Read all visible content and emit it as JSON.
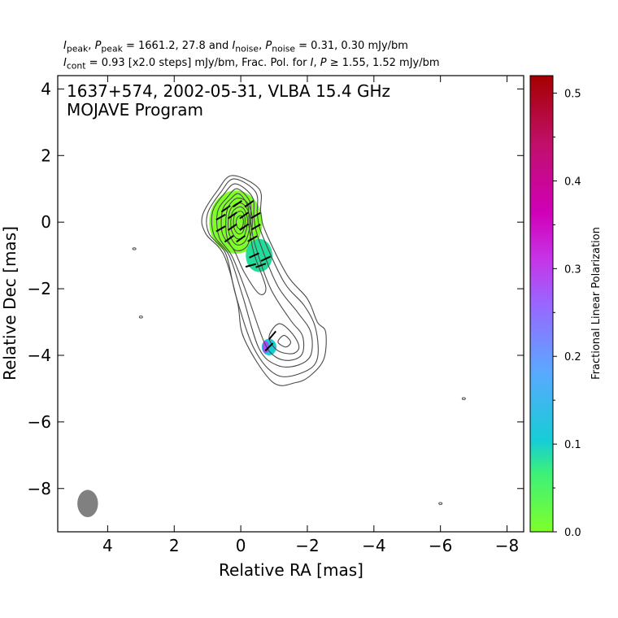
{
  "header": {
    "line1": "I_peak, P_peak = 1661.2, 27.8 and I_noise, P_noise = 0.31, 0.30 mJy/bm",
    "line2": "I_cont = 0.93 [x2.0 steps] mJy/bm, Frac. Pol. for I, P ≥ 1.55, 1.52 mJy/bm"
  },
  "chart_data": {
    "type": "contour",
    "title_line1": "1637+574, 2002-05-31, VLBA 15.4 GHz",
    "title_line2": "MOJAVE Program",
    "xlabel": "Relative RA [mas]",
    "ylabel": "Relative Dec [mas]",
    "xlim": [
      5.5,
      -8.5
    ],
    "ylim": [
      -9.3,
      4.4
    ],
    "x_ticks": [
      4,
      2,
      0,
      -2,
      -4,
      -6,
      -8
    ],
    "x_tick_labels": [
      "4",
      "2",
      "0",
      "−2",
      "−4",
      "−6",
      "−8"
    ],
    "y_ticks": [
      4,
      2,
      0,
      -2,
      -4,
      -6,
      -8
    ],
    "y_tick_labels": [
      "4",
      "2",
      "0",
      "−2",
      "−4",
      "−6",
      "−8"
    ],
    "colorbar": {
      "label": "Fractional Linear Polarization",
      "range": [
        0.0,
        0.52
      ],
      "ticks": [
        0.0,
        0.1,
        0.2,
        0.3,
        0.4,
        0.5
      ],
      "tick_labels": [
        "0.0",
        "0.1",
        "0.2",
        "0.3",
        "0.4",
        "0.5"
      ],
      "colormap": [
        "#7fff2a",
        "#22dd9a",
        "#16cdd6",
        "#5aa9ff",
        "#a64dff",
        "#d000d0",
        "#c0106a",
        "#a50000"
      ]
    },
    "contours": [
      {
        "level": 1,
        "points": [
          [
            0.25,
            1.4
          ],
          [
            -0.55,
            1.0
          ],
          [
            -0.6,
            0.3
          ],
          [
            -0.75,
            -0.3
          ],
          [
            -1.4,
            -1.6
          ],
          [
            -2.0,
            -2.3
          ],
          [
            -2.3,
            -3.0
          ],
          [
            -2.55,
            -3.3
          ],
          [
            -2.5,
            -4.1
          ],
          [
            -2.1,
            -4.6
          ],
          [
            -1.65,
            -4.82
          ],
          [
            -0.95,
            -4.8
          ],
          [
            -0.1,
            -3.5
          ],
          [
            0.1,
            -2.4
          ],
          [
            0.5,
            -1.0
          ],
          [
            1.05,
            -0.35
          ],
          [
            1.15,
            0.2
          ],
          [
            0.7,
            0.95
          ]
        ]
      },
      {
        "level": 2,
        "points": [
          [
            0.2,
            1.3
          ],
          [
            -0.45,
            0.9
          ],
          [
            -0.5,
            0.2
          ],
          [
            -0.65,
            -0.4
          ],
          [
            -1.3,
            -1.8
          ],
          [
            -1.9,
            -2.5
          ],
          [
            -2.25,
            -3.2
          ],
          [
            -2.3,
            -4.1
          ],
          [
            -1.9,
            -4.5
          ],
          [
            -1.1,
            -4.6
          ],
          [
            -0.4,
            -3.8
          ],
          [
            0.15,
            -2.2
          ],
          [
            0.45,
            -0.95
          ],
          [
            0.95,
            -0.35
          ],
          [
            1.0,
            0.25
          ],
          [
            0.6,
            0.9
          ]
        ]
      },
      {
        "level": 3,
        "points": [
          [
            0.15,
            1.15
          ],
          [
            -0.35,
            0.75
          ],
          [
            -0.4,
            0.1
          ],
          [
            -0.55,
            -0.55
          ],
          [
            -1.1,
            -1.9
          ],
          [
            -1.7,
            -2.7
          ],
          [
            -2.1,
            -3.3
          ],
          [
            -2.1,
            -4.0
          ],
          [
            -1.7,
            -4.3
          ],
          [
            -1.1,
            -4.3
          ],
          [
            -0.55,
            -3.8
          ],
          [
            -0.05,
            -2.2
          ],
          [
            0.35,
            -1.0
          ],
          [
            0.8,
            -0.4
          ],
          [
            0.85,
            0.3
          ],
          [
            0.5,
            0.85
          ]
        ]
      },
      {
        "level": 4,
        "points": [
          [
            0.1,
            1.0
          ],
          [
            -0.28,
            0.6
          ],
          [
            -0.3,
            0.0
          ],
          [
            -0.45,
            -0.75
          ],
          [
            -0.9,
            -2.0
          ],
          [
            -1.5,
            -2.95
          ],
          [
            -1.85,
            -3.4
          ],
          [
            -1.85,
            -3.95
          ],
          [
            -1.5,
            -4.15
          ],
          [
            -1.05,
            -4.05
          ],
          [
            -0.7,
            -3.6
          ],
          [
            -0.2,
            -2.2
          ],
          [
            0.25,
            -1.05
          ],
          [
            0.65,
            -0.45
          ],
          [
            0.7,
            0.3
          ],
          [
            0.4,
            0.75
          ]
        ]
      },
      {
        "level": 5,
        "points": [
          [
            0.05,
            0.85
          ],
          [
            -0.22,
            0.45
          ],
          [
            -0.25,
            -0.15
          ],
          [
            -0.4,
            -0.95
          ],
          [
            -0.75,
            -1.95
          ],
          [
            -0.55,
            -2.15
          ],
          [
            -0.1,
            -1.5
          ],
          [
            0.2,
            -0.85
          ],
          [
            0.55,
            -0.35
          ],
          [
            0.55,
            0.35
          ],
          [
            0.3,
            0.7
          ]
        ]
      },
      {
        "level": 6,
        "points": [
          [
            0.45,
            0.0
          ],
          [
            0.38,
            0.45
          ],
          [
            0.1,
            0.72
          ],
          [
            -0.22,
            0.55
          ],
          [
            -0.35,
            0.0
          ],
          [
            -0.2,
            -0.7
          ],
          [
            0.15,
            -0.85
          ],
          [
            0.4,
            -0.5
          ]
        ]
      },
      {
        "level": 7,
        "points": [
          [
            0.38,
            0.0
          ],
          [
            0.3,
            0.4
          ],
          [
            0.05,
            0.58
          ],
          [
            -0.18,
            0.42
          ],
          [
            -0.28,
            0.0
          ],
          [
            -0.15,
            -0.55
          ],
          [
            0.12,
            -0.68
          ],
          [
            0.33,
            -0.4
          ]
        ]
      },
      {
        "level": 8,
        "points": [
          [
            0.3,
            0.0
          ],
          [
            0.24,
            0.32
          ],
          [
            0.02,
            0.46
          ],
          [
            -0.14,
            0.32
          ],
          [
            -0.2,
            0.0
          ],
          [
            -0.1,
            -0.42
          ],
          [
            0.1,
            -0.5
          ],
          [
            0.26,
            -0.3
          ]
        ]
      },
      {
        "level": 9,
        "points": [
          [
            0.22,
            0.0
          ],
          [
            0.17,
            0.24
          ],
          [
            0.0,
            0.33
          ],
          [
            -0.1,
            0.22
          ],
          [
            -0.13,
            0.0
          ],
          [
            -0.06,
            -0.3
          ],
          [
            0.08,
            -0.35
          ],
          [
            0.19,
            -0.2
          ]
        ]
      },
      {
        "level": 10,
        "points": [
          [
            0.14,
            0.0
          ],
          [
            0.1,
            0.14
          ],
          [
            0.0,
            0.2
          ],
          [
            -0.06,
            0.13
          ],
          [
            -0.08,
            0.0
          ],
          [
            -0.03,
            -0.17
          ],
          [
            0.05,
            -0.2
          ],
          [
            0.12,
            -0.11
          ]
        ]
      },
      {
        "level": 11,
        "points": [
          [
            -1.15,
            -3.05
          ],
          [
            -1.55,
            -3.35
          ],
          [
            -1.75,
            -3.75
          ],
          [
            -1.55,
            -3.95
          ],
          [
            -1.1,
            -3.85
          ],
          [
            -0.85,
            -3.45
          ]
        ]
      },
      {
        "level": 12,
        "points": [
          [
            -1.3,
            -3.4
          ],
          [
            -1.5,
            -3.6
          ],
          [
            -1.35,
            -3.75
          ],
          [
            -1.12,
            -3.6
          ]
        ]
      }
    ],
    "noise_specks": [
      {
        "x": 3.2,
        "y": -0.8
      },
      {
        "x": 3.0,
        "y": -2.85
      },
      {
        "x": -6.7,
        "y": -5.3
      },
      {
        "x": -6.0,
        "y": -8.45
      }
    ],
    "polarization_patches": [
      {
        "x": 0.15,
        "y": 0.0,
        "rx": 0.8,
        "ry": 0.95,
        "frac_pol": 0.02
      },
      {
        "x": -0.55,
        "y": -1.0,
        "rx": 0.4,
        "ry": 0.5,
        "frac_pol": 0.1
      },
      {
        "x": -0.85,
        "y": -3.75,
        "rx": 0.22,
        "ry": 0.25,
        "frac_pol": 0.18
      },
      {
        "x": -0.75,
        "y": -3.75,
        "rx": 0.1,
        "ry": 0.18,
        "frac_pol": 0.28
      }
    ],
    "evpa_vectors": [
      {
        "x": -0.25,
        "y": 0.55,
        "angle_deg": 35
      },
      {
        "x": 0.1,
        "y": 0.55,
        "angle_deg": 35
      },
      {
        "x": 0.45,
        "y": 0.4,
        "angle_deg": 35
      },
      {
        "x": -0.45,
        "y": 0.2,
        "angle_deg": 30
      },
      {
        "x": -0.1,
        "y": 0.2,
        "angle_deg": 35
      },
      {
        "x": 0.25,
        "y": 0.2,
        "angle_deg": 35
      },
      {
        "x": 0.6,
        "y": 0.15,
        "angle_deg": 30
      },
      {
        "x": -0.45,
        "y": -0.15,
        "angle_deg": 30
      },
      {
        "x": -0.1,
        "y": -0.15,
        "angle_deg": 35
      },
      {
        "x": 0.25,
        "y": -0.15,
        "angle_deg": 35
      },
      {
        "x": 0.6,
        "y": -0.2,
        "angle_deg": 30
      },
      {
        "x": -0.35,
        "y": -0.5,
        "angle_deg": 30
      },
      {
        "x": 0.0,
        "y": -0.5,
        "angle_deg": 35
      },
      {
        "x": 0.35,
        "y": -0.5,
        "angle_deg": 35
      },
      {
        "x": -0.4,
        "y": -1.0,
        "angle_deg": 25
      },
      {
        "x": -0.75,
        "y": -1.1,
        "angle_deg": 25
      },
      {
        "x": -0.6,
        "y": -1.3,
        "angle_deg": 20
      },
      {
        "x": -0.3,
        "y": -1.3,
        "angle_deg": 15
      },
      {
        "x": -0.95,
        "y": -3.4,
        "angle_deg": 50
      },
      {
        "x": -0.85,
        "y": -3.75,
        "angle_deg": 45
      }
    ],
    "beam": {
      "x": 4.6,
      "y": -8.45,
      "major": 0.82,
      "minor": 0.62
    }
  }
}
